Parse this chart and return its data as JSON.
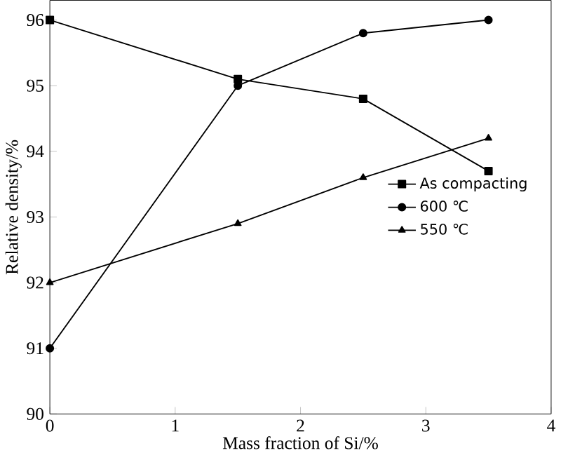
{
  "chart_data": {
    "type": "line",
    "xlabel": "Mass fraction of Si/%",
    "ylabel": "Relative density/%",
    "xlim": [
      0,
      4
    ],
    "xticks": [
      0,
      1,
      2,
      3,
      4
    ],
    "ylim": [
      90,
      96.3
    ],
    "yticks": [
      90,
      91,
      92,
      93,
      94,
      95,
      96
    ],
    "legend": "right",
    "series": [
      {
        "name": "As compacting",
        "color": "#000000",
        "marker": "square",
        "x": [
          0,
          1.5,
          2.5,
          3.5
        ],
        "values": [
          96,
          95.1,
          94.8,
          93.7
        ]
      },
      {
        "name": "600 ℃",
        "color": "#000000",
        "marker": "circle",
        "x": [
          0,
          1.5,
          2.5,
          3.5
        ],
        "values": [
          91,
          95.0,
          95.8,
          96.0
        ]
      },
      {
        "name": "550 ℃",
        "color": "#000000",
        "marker": "triangle",
        "x": [
          0,
          1.5,
          2.5,
          3.5
        ],
        "values": [
          92,
          92.9,
          93.6,
          94.2
        ]
      }
    ]
  }
}
